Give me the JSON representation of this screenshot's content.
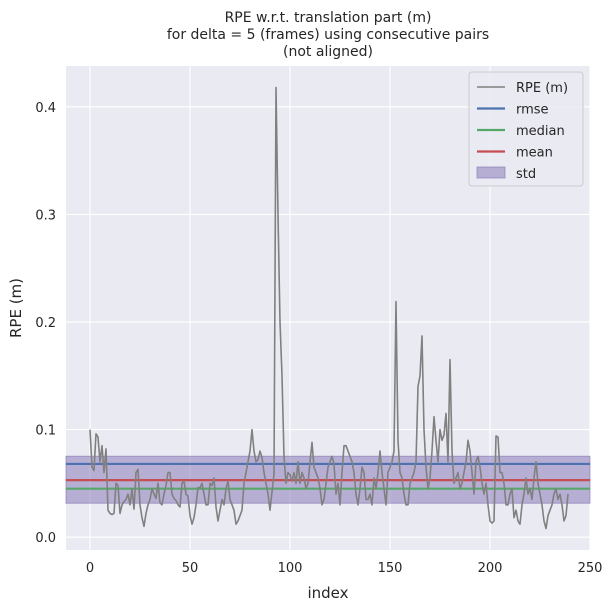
{
  "chart_data": {
    "type": "line",
    "title_lines": [
      "RPE w.r.t. translation part (m)",
      "for delta = 5 (frames) using consecutive pairs",
      "(not aligned)"
    ],
    "xlabel": "index",
    "ylabel": "RPE (m)",
    "xlim": [
      -12,
      250
    ],
    "ylim": [
      -0.012,
      0.438
    ],
    "xticks": [
      0,
      50,
      100,
      150,
      200,
      250
    ],
    "yticks": [
      0.0,
      0.1,
      0.2,
      0.3,
      0.4
    ],
    "ytick_labels": [
      "0.0",
      "0.1",
      "0.2",
      "0.3",
      "0.4"
    ],
    "grid": true,
    "legend_position": "top-right",
    "colors": {
      "background": "#eaeaf2",
      "grid": "#ffffff",
      "rpe": "#808080",
      "rmse": "#4c72b0",
      "median": "#55a868",
      "mean": "#c44e52",
      "std_fill": "#8172b3"
    },
    "series": [
      {
        "name": "RPE (m)",
        "x_start": 0,
        "x_step": 1,
        "values": [
          0.1,
          0.065,
          0.062,
          0.096,
          0.093,
          0.07,
          0.085,
          0.06,
          0.082,
          0.025,
          0.022,
          0.021,
          0.022,
          0.05,
          0.048,
          0.022,
          0.03,
          0.033,
          0.035,
          0.04,
          0.03,
          0.045,
          0.026,
          0.06,
          0.063,
          0.03,
          0.018,
          0.01,
          0.022,
          0.03,
          0.035,
          0.045,
          0.04,
          0.036,
          0.05,
          0.032,
          0.03,
          0.04,
          0.048,
          0.06,
          0.06,
          0.04,
          0.036,
          0.034,
          0.03,
          0.028,
          0.05,
          0.052,
          0.04,
          0.038,
          0.02,
          0.012,
          0.018,
          0.03,
          0.046,
          0.046,
          0.05,
          0.04,
          0.03,
          0.03,
          0.05,
          0.048,
          0.055,
          0.028,
          0.015,
          0.025,
          0.035,
          0.03,
          0.045,
          0.052,
          0.035,
          0.03,
          0.025,
          0.012,
          0.015,
          0.02,
          0.025,
          0.05,
          0.06,
          0.07,
          0.08,
          0.1,
          0.08,
          0.07,
          0.072,
          0.08,
          0.074,
          0.06,
          0.05,
          0.04,
          0.025,
          0.042,
          0.058,
          0.418,
          0.3,
          0.2,
          0.15,
          0.075,
          0.05,
          0.06,
          0.058,
          0.052,
          0.06,
          0.05,
          0.07,
          0.05,
          0.06,
          0.055,
          0.045,
          0.05,
          0.07,
          0.088,
          0.065,
          0.06,
          0.055,
          0.045,
          0.03,
          0.035,
          0.05,
          0.065,
          0.07,
          0.075,
          0.068,
          0.04,
          0.05,
          0.03,
          0.06,
          0.085,
          0.085,
          0.08,
          0.075,
          0.07,
          0.06,
          0.04,
          0.03,
          0.045,
          0.065,
          0.06,
          0.035,
          0.035,
          0.04,
          0.03,
          0.055,
          0.045,
          0.06,
          0.08,
          0.06,
          0.045,
          0.03,
          0.06,
          0.065,
          0.07,
          0.08,
          0.219,
          0.09,
          0.06,
          0.055,
          0.04,
          0.03,
          0.03,
          0.05,
          0.055,
          0.06,
          0.07,
          0.14,
          0.15,
          0.187,
          0.1,
          0.065,
          0.045,
          0.06,
          0.045,
          0.03,
          0.07,
          0.06,
          0.075,
          0.05,
          0.08,
          0.055,
          0.07,
          0.025,
          0.05,
          0.08,
          0.06,
          0.09,
          0.03,
          0.03,
          0.07,
          0.04,
          0.065
        ]
      }
    ],
    "series_tail": {
      "x_start": 170,
      "values": [
        0.055,
        0.08,
        0.112,
        0.09,
        0.07,
        0.1,
        0.09,
        0.095,
        0.115,
        0.07,
        0.165,
        0.08,
        0.05,
        0.055,
        0.06,
        0.045,
        0.05,
        0.06,
        0.07,
        0.09,
        0.08,
        0.06,
        0.04,
        0.07,
        0.075,
        0.065,
        0.05,
        0.04,
        0.05,
        0.03,
        0.015,
        0.013,
        0.015,
        0.094,
        0.093,
        0.06,
        0.06,
        0.05,
        0.03,
        0.03,
        0.04,
        0.045,
        0.018,
        0.025,
        0.015,
        0.012,
        0.03,
        0.04,
        0.055,
        0.04,
        0.045,
        0.035,
        0.055,
        0.07,
        0.05,
        0.04,
        0.03,
        0.015,
        0.008,
        0.02,
        0.025,
        0.03,
        0.04,
        0.045,
        0.035,
        0.04,
        0.03,
        0.015,
        0.02,
        0.04
      ]
    },
    "stats": {
      "rmse": 0.068,
      "median": 0.045,
      "mean": 0.053,
      "std": 0.043
    },
    "legend": [
      "RPE (m)",
      "rmse",
      "median",
      "mean",
      "std"
    ]
  }
}
